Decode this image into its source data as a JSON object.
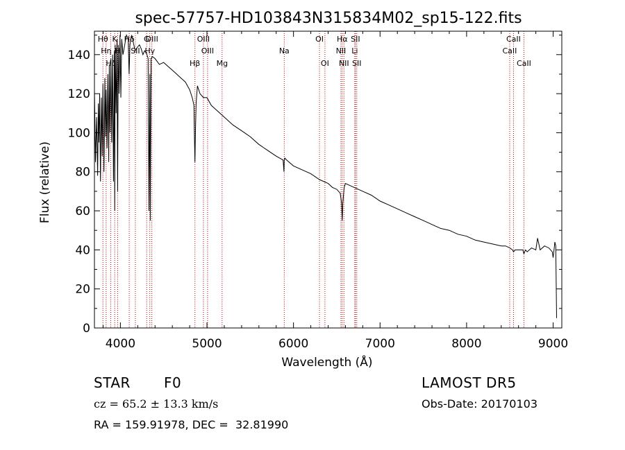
{
  "chart_data": {
    "type": "line",
    "title": "spec-57757-HD103843N315834M02_sp15-122.fits",
    "xlabel": "Wavelength (Å)",
    "ylabel": "Flux (relative)",
    "xlim": [
      3700,
      9100
    ],
    "ylim": [
      0,
      152
    ],
    "xticks": [
      4000,
      5000,
      6000,
      7000,
      8000,
      9000
    ],
    "xtick_labels": [
      "4000",
      "5000",
      "6000",
      "7000",
      "8000",
      "9000"
    ],
    "yticks": [
      0,
      20,
      40,
      60,
      80,
      100,
      120,
      140
    ],
    "ytick_labels": [
      "0",
      "20",
      "40",
      "60",
      "80",
      "100",
      "120",
      "140"
    ],
    "grid": false,
    "line_color": "#000000",
    "marker_line_color": "#c00000",
    "series": [
      {
        "values_description_free": true,
        "x": [
          3700,
          3712,
          3725,
          3737,
          3745,
          3752,
          3760,
          3770,
          3780,
          3790,
          3798,
          3810,
          3820,
          3828,
          3835,
          3845,
          3855,
          3865,
          3872,
          3880,
          3890,
          3900,
          3910,
          3920,
          3930,
          3934,
          3940,
          3950,
          3960,
          3968,
          3975,
          3985,
          3995,
          4005,
          4015,
          4030,
          4050,
          4070,
          4090,
          4100,
          4110,
          4130,
          4150,
          4170,
          4200,
          4220,
          4240,
          4260,
          4280,
          4300,
          4320,
          4330,
          4340,
          4345,
          4355,
          4370,
          4400,
          4450,
          4500,
          4550,
          4600,
          4650,
          4700,
          4750,
          4800,
          4830,
          4850,
          4855,
          4861,
          4867,
          4875,
          4890,
          4920,
          4960,
          5000,
          5050,
          5100,
          5150,
          5200,
          5300,
          5400,
          5500,
          5600,
          5700,
          5800,
          5880,
          5890,
          5893,
          5900,
          5920,
          6000,
          6100,
          6200,
          6300,
          6400,
          6450,
          6500,
          6540,
          6555,
          6563,
          6570,
          6585,
          6600,
          6650,
          6700,
          6800,
          6900,
          7000,
          7100,
          7200,
          7300,
          7400,
          7500,
          7600,
          7700,
          7800,
          7900,
          8000,
          8100,
          8200,
          8300,
          8400,
          8450,
          8500,
          8530,
          8542,
          8560,
          8600,
          8650,
          8662,
          8680,
          8700,
          8750,
          8800,
          8820,
          8850,
          8900,
          8950,
          8990,
          9000,
          9010,
          9020,
          9030,
          9040
        ],
        "y": [
          122,
          85,
          108,
          78,
          115,
          95,
          120,
          75,
          118,
          88,
          125,
          80,
          128,
          98,
          122,
          92,
          130,
          85,
          135,
          100,
          138,
          95,
          140,
          75,
          142,
          60,
          145,
          110,
          148,
          70,
          145,
          120,
          150,
          118,
          148,
          140,
          145,
          150,
          148,
          130,
          145,
          150,
          146,
          142,
          144,
          145,
          143,
          140,
          142,
          141,
          138,
          60,
          130,
          55,
          138,
          139,
          138,
          135,
          136,
          134,
          132,
          130,
          128,
          126,
          122,
          118,
          114,
          100,
          85,
          100,
          115,
          124,
          120,
          118,
          118,
          114,
          112,
          110,
          108,
          104,
          101,
          98,
          94,
          91,
          88,
          86,
          80,
          86,
          87,
          86,
          83,
          81,
          79,
          76,
          74,
          72,
          71,
          69,
          64,
          55,
          64,
          72,
          74,
          73,
          72,
          70,
          68,
          65,
          63,
          61,
          59,
          57,
          55,
          53,
          51,
          50,
          48,
          47,
          45,
          44,
          43,
          42,
          42,
          41,
          40,
          39,
          40,
          40,
          40,
          38,
          40,
          39,
          41,
          40,
          46,
          40,
          42,
          41,
          39,
          36,
          40,
          44,
          42,
          5
        ]
      }
    ],
    "line_markers": [
      {
        "x": 3798,
        "label": "Hθ",
        "row": 0
      },
      {
        "x": 3835,
        "label": "Hη",
        "row": 1
      },
      {
        "x": 3889,
        "label": "Hζ",
        "row": 2
      },
      {
        "x": 3934,
        "label": "K",
        "row": 0
      },
      {
        "x": 3968,
        "label": "H",
        "row": 1
      },
      {
        "x": 4102,
        "label": "Hδ",
        "row": 0
      },
      {
        "x": 4173,
        "label": "SII",
        "row": 1
      },
      {
        "x": 4304,
        "label": "G",
        "row": 0
      },
      {
        "x": 4340,
        "label": "Hγ",
        "row": 1
      },
      {
        "x": 4363,
        "label": "OIII",
        "row": 0
      },
      {
        "x": 4861,
        "label": "Hβ",
        "row": 2
      },
      {
        "x": 4959,
        "label": "OIII",
        "row": 0
      },
      {
        "x": 5007,
        "label": "OIII",
        "row": 1
      },
      {
        "x": 5175,
        "label": "Mg",
        "row": 2
      },
      {
        "x": 5893,
        "label": "Na",
        "row": 1
      },
      {
        "x": 6300,
        "label": "OI",
        "row": 0
      },
      {
        "x": 6363,
        "label": "OI",
        "row": 2
      },
      {
        "x": 6548,
        "label": "NII",
        "row": 1
      },
      {
        "x": 6563,
        "label": "Hα",
        "row": 0
      },
      {
        "x": 6583,
        "label": "NII",
        "row": 2
      },
      {
        "x": 6708,
        "label": "Li",
        "row": 1
      },
      {
        "x": 6716,
        "label": "SII",
        "row": 0
      },
      {
        "x": 6731,
        "label": "SII",
        "row": 2
      },
      {
        "x": 8498,
        "label": "CaII",
        "row": 1
      },
      {
        "x": 8542,
        "label": "CaII",
        "row": 0
      },
      {
        "x": 8662,
        "label": "CaII",
        "row": 2
      }
    ]
  },
  "info": {
    "object_class": "STAR",
    "subclass": "F0",
    "survey": "LAMOST DR5",
    "redshift": "cz = 65.2 ± 13.3 km/s",
    "obs_date": "Obs-Date: 20170103",
    "coords": "RA = 159.91978, DEC =  32.81990"
  }
}
